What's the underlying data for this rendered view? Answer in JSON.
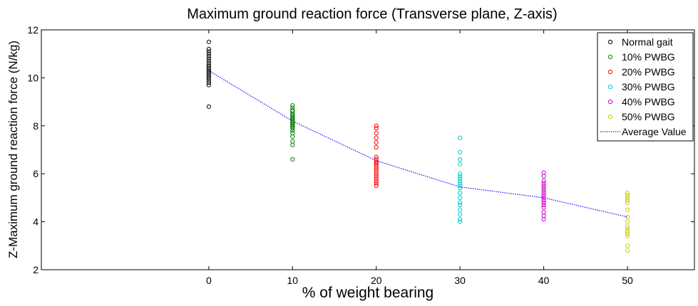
{
  "chart_data": {
    "type": "scatter",
    "title": "Maximum ground reaction force (Transverse plane, Z-axis)",
    "xlabel": "% of weight bearing",
    "ylabel": "Z-Maximum ground reaction force (N/kg)",
    "xlim": [
      -20,
      58
    ],
    "ylim": [
      2,
      12
    ],
    "xticks": [
      0,
      10,
      20,
      30,
      40,
      50
    ],
    "yticks": [
      2,
      4,
      6,
      8,
      10,
      12
    ],
    "legend_position": "top-right",
    "series": [
      {
        "name": "Normal gait",
        "color": "#000000",
        "marker": "circle",
        "x": 0,
        "values": [
          11.5,
          11.2,
          11.1,
          11.0,
          10.9,
          10.8,
          10.7,
          10.6,
          10.5,
          10.5,
          10.4,
          10.4,
          10.3,
          10.3,
          10.2,
          10.2,
          10.1,
          10.1,
          10.0,
          10.0,
          9.9,
          9.8,
          9.7,
          8.8
        ]
      },
      {
        "name": "10% PWBG",
        "color": "#008000",
        "marker": "circle",
        "x": 10,
        "values": [
          8.85,
          8.75,
          8.65,
          8.6,
          8.5,
          8.45,
          8.4,
          8.35,
          8.3,
          8.25,
          8.2,
          8.15,
          8.1,
          8.05,
          8.0,
          7.95,
          7.9,
          7.8,
          7.7,
          7.55,
          7.35,
          7.2,
          6.6
        ]
      },
      {
        "name": "20% PWBG",
        "color": "#ff0000",
        "marker": "circle",
        "x": 20,
        "values": [
          8.0,
          7.9,
          7.7,
          7.5,
          7.3,
          7.1,
          6.7,
          6.6,
          6.5,
          6.45,
          6.4,
          6.3,
          6.2,
          6.1,
          6.0,
          5.9,
          5.8,
          5.7,
          5.6,
          5.5
        ]
      },
      {
        "name": "30% PWBG",
        "color": "#00cccc",
        "marker": "circle",
        "x": 30,
        "values": [
          7.5,
          6.9,
          6.6,
          6.4,
          6.0,
          5.9,
          5.8,
          5.7,
          5.6,
          5.5,
          5.4,
          5.2,
          5.0,
          4.8,
          4.7,
          4.5,
          4.3,
          4.1,
          4.0
        ]
      },
      {
        "name": "40% PWBG",
        "color": "#cc00cc",
        "marker": "circle",
        "x": 40,
        "values": [
          6.05,
          5.9,
          5.7,
          5.6,
          5.5,
          5.4,
          5.3,
          5.2,
          5.1,
          5.0,
          4.9,
          4.8,
          4.7,
          4.6,
          4.4,
          4.25,
          4.1
        ]
      },
      {
        "name": "50% PWBG",
        "color": "#cccc00",
        "marker": "circle",
        "x": 50,
        "values": [
          5.2,
          5.1,
          5.0,
          4.9,
          4.8,
          4.5,
          4.2,
          4.0,
          3.8,
          3.7,
          3.6,
          3.5,
          3.4,
          3.0,
          2.8
        ]
      }
    ],
    "average_line": {
      "name": "Average Value",
      "color": "#2222ff",
      "style": "dotted",
      "x": [
        0,
        10,
        20,
        30,
        40,
        50
      ],
      "y": [
        10.3,
        8.2,
        6.55,
        5.45,
        5.0,
        4.2
      ]
    }
  }
}
